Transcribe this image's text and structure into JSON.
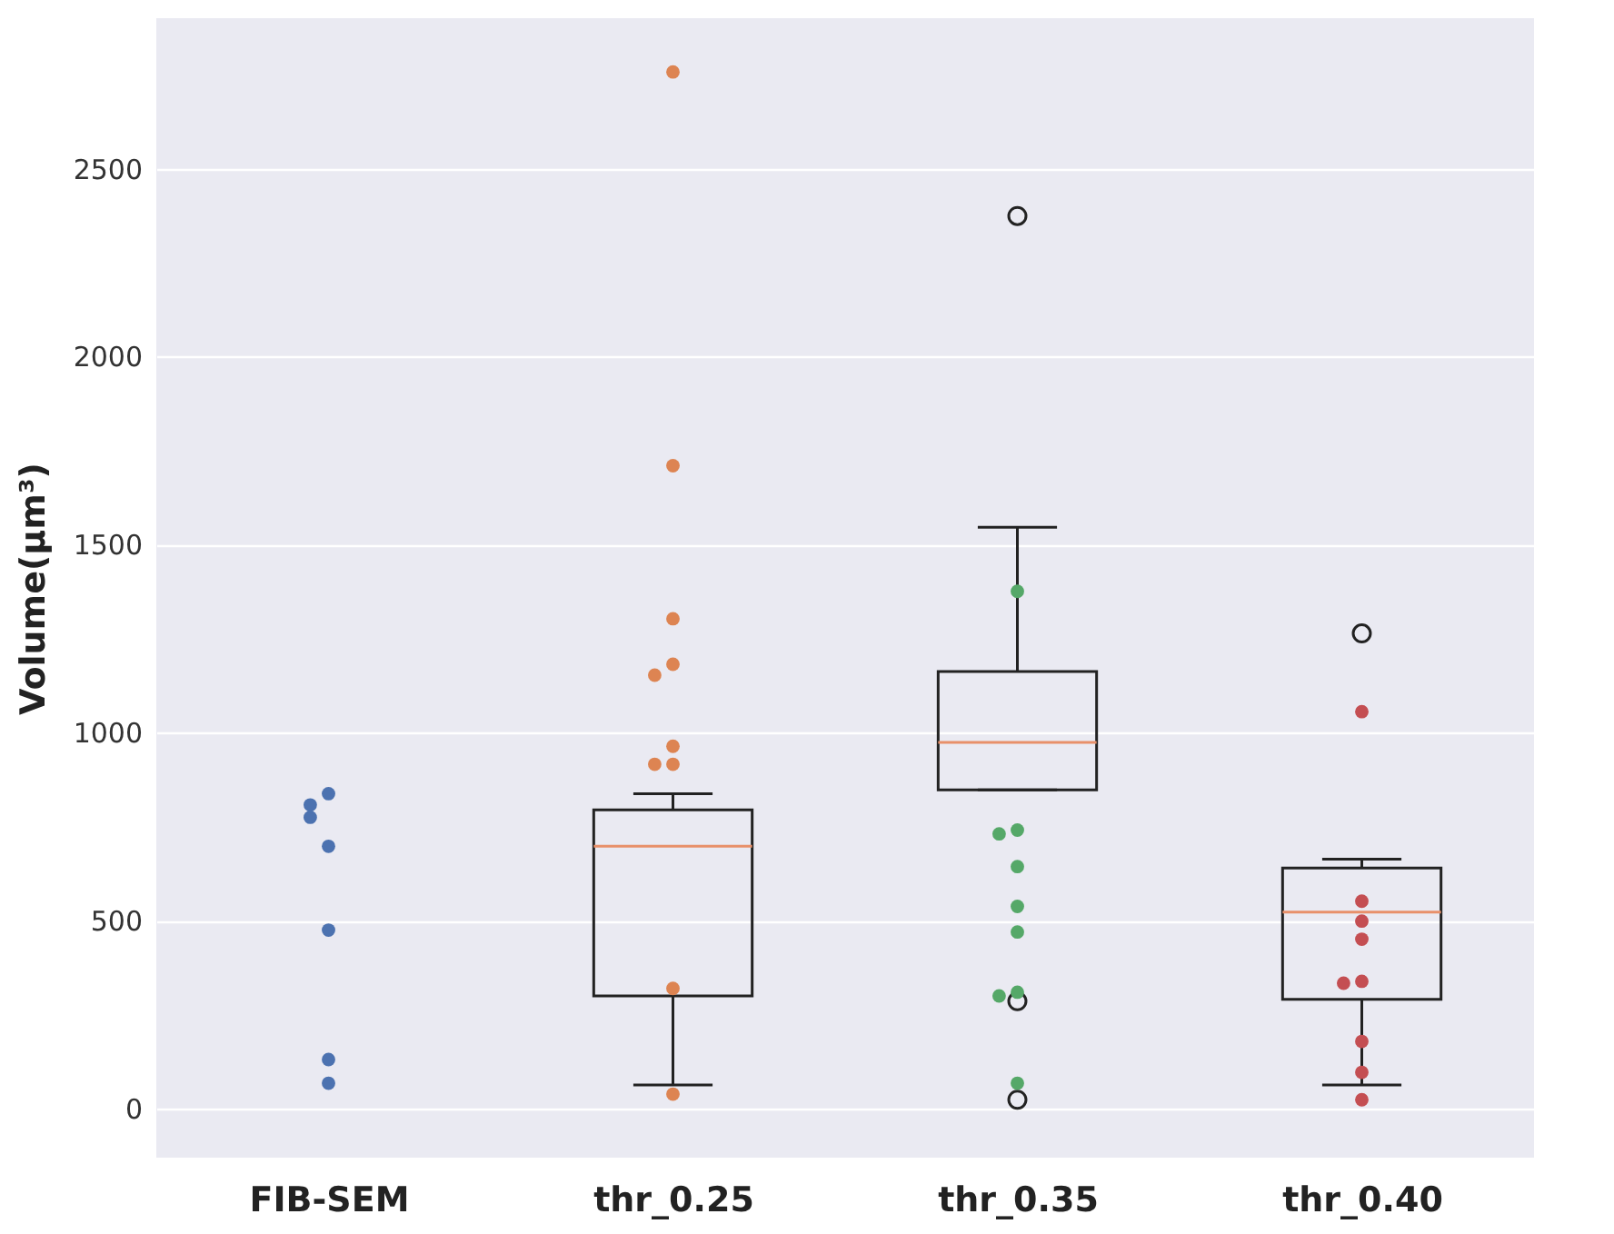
{
  "chart_data": {
    "type": "box",
    "ylabel": "Volume(μm³)",
    "categories": [
      "FIB-SEM",
      "thr_0.25",
      "thr_0.35",
      "thr_0.40"
    ],
    "ylim": [
      -130,
      2900
    ],
    "yticks": [
      0,
      500,
      1000,
      1500,
      2000,
      2500
    ],
    "grid": "y",
    "marker": "circle",
    "boxes": [
      null,
      {
        "low": 63,
        "q1": 300,
        "median": 698,
        "q3": 795,
        "high": 838
      },
      {
        "low": 848,
        "q1": 848,
        "median": 974,
        "q3": 1163,
        "high": 1546,
        "outliers": [
          2374,
          286,
          24
        ]
      },
      {
        "low": 63,
        "q1": 291,
        "median": 523,
        "q3": 640,
        "high": 664,
        "outliers": [
          1264
        ]
      }
    ],
    "series": [
      {
        "type": "scatter",
        "color": "#4c72b0",
        "x": [
          "FIB-SEM",
          "FIB-SEM",
          "FIB-SEM",
          "FIB-SEM",
          "FIB-SEM",
          "FIB-SEM",
          "FIB-SEM"
        ],
        "values": [
          838,
          808,
          775,
          698,
          475,
          131,
          68
        ]
      },
      {
        "type": "scatter",
        "color": "#dd8452",
        "x": [
          "thr_0.25",
          "thr_0.25",
          "thr_0.25",
          "thr_0.25",
          "thr_0.25",
          "thr_0.25",
          "thr_0.25",
          "thr_0.25",
          "thr_0.25",
          "thr_0.25"
        ],
        "values": [
          2757,
          1710,
          1303,
          1182,
          1153,
          964,
          916,
          916,
          320,
          39
        ]
      },
      {
        "type": "scatter",
        "color": "#55a868",
        "x": [
          "thr_0.35",
          "thr_0.35",
          "thr_0.35",
          "thr_0.35",
          "thr_0.35",
          "thr_0.35",
          "thr_0.35",
          "thr_0.35",
          "thr_0.35"
        ],
        "values": [
          1376,
          741,
          731,
          644,
          538,
          470,
          310,
          300,
          68
        ]
      },
      {
        "type": "scatter",
        "color": "#c44e52",
        "x": [
          "thr_0.40",
          "thr_0.40",
          "thr_0.40",
          "thr_0.40",
          "thr_0.40",
          "thr_0.40",
          "thr_0.40",
          "thr_0.40",
          "thr_0.40"
        ],
        "values": [
          1056,
          552,
          499,
          451,
          339,
          334,
          179,
          97,
          24
        ]
      }
    ]
  }
}
